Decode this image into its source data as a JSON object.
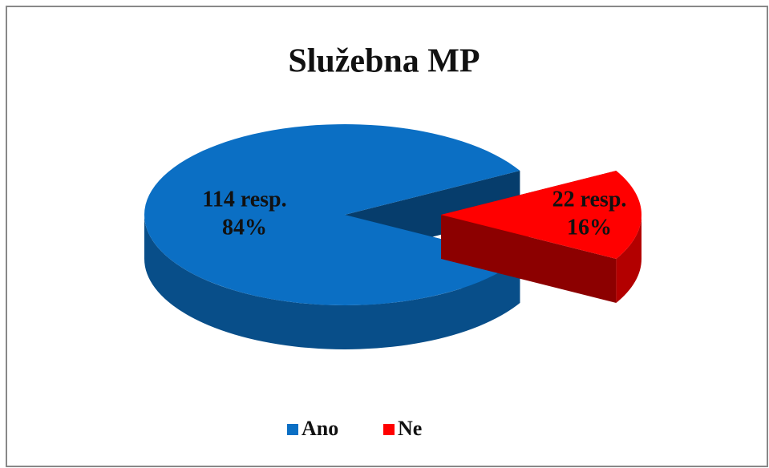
{
  "chart_data": {
    "type": "pie3d",
    "title": "Služebna MP",
    "categories": [
      "Ano",
      "Ne"
    ],
    "values": [
      114,
      22
    ],
    "value_labels": [
      "114 resp.",
      "22 resp."
    ],
    "percent_labels": [
      "84%",
      "16%"
    ],
    "colors": [
      "#0b6fc4",
      "#ff0000"
    ],
    "exploded": [
      false,
      true
    ],
    "legend": "bottom"
  }
}
